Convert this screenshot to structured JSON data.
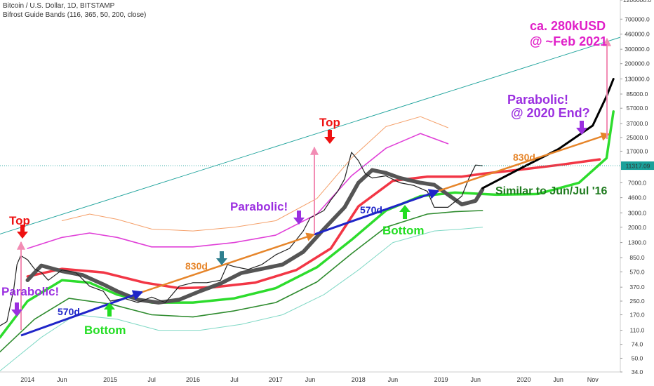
{
  "header": {
    "title": "Bitcoin / U.S. Dollar, 1D, BITSTAMP",
    "indicator": "Bifrost Guide Bands (116, 365, 50, 200, close)"
  },
  "price_label": {
    "value": "11317.09",
    "color": "#1aa19a"
  },
  "chart_data": {
    "type": "line",
    "scale": "log",
    "title": "Bitcoin / U.S. Dollar, 1D, BITSTAMP",
    "x_ticks": [
      "2014",
      "Jun",
      "2015",
      "Jul",
      "2016",
      "Jul",
      "2017",
      "Jun",
      "2018",
      "Jun",
      "2019",
      "Jun",
      "2020",
      "Jun",
      "Nov"
    ],
    "y_ticks": [
      "1200000.0",
      "700000.0",
      "460000.0",
      "300000.0",
      "200000.0",
      "130000.0",
      "85000.0",
      "57000.0",
      "37000.0",
      "25000.0",
      "17000.0",
      "11317.09",
      "7000.0",
      "4600.0",
      "3000.0",
      "2000.0",
      "1300.0",
      "850.0",
      "570.0",
      "370.0",
      "250.0",
      "170.0",
      "110.0",
      "74.0",
      "50.0",
      "34.0"
    ],
    "ylim": [
      34,
      1200000
    ],
    "xlim": [
      "2013-09",
      "2021-03"
    ],
    "series": [
      {
        "name": "BTC price (close)",
        "color": "#222222",
        "x": [
          "2013-09",
          "2013-10",
          "2013-11",
          "2013-11-15",
          "2013-12",
          "2014-01",
          "2014-02",
          "2014-03",
          "2014-04",
          "2014-06",
          "2014-08",
          "2014-10",
          "2014-12",
          "2015-01",
          "2015-03",
          "2015-05",
          "2015-07",
          "2015-09",
          "2015-11",
          "2016-01",
          "2016-03",
          "2016-05",
          "2016-06",
          "2016-07",
          "2016-09",
          "2016-11",
          "2017-01",
          "2017-03",
          "2017-05",
          "2017-06",
          "2017-08",
          "2017-09",
          "2017-10",
          "2017-11",
          "2017-12",
          "2018-01",
          "2018-02",
          "2018-03",
          "2018-05",
          "2018-07",
          "2018-09",
          "2018-11",
          "2018-12",
          "2019-02",
          "2019-04",
          "2019-05",
          "2019-06",
          "2019-07"
        ],
        "y": [
          125,
          140,
          350,
          700,
          900,
          800,
          620,
          560,
          450,
          600,
          560,
          380,
          330,
          250,
          270,
          240,
          280,
          240,
          380,
          420,
          420,
          450,
          700,
          660,
          610,
          700,
          920,
          1100,
          1800,
          2600,
          3200,
          4300,
          5500,
          7800,
          16500,
          13000,
          9000,
          8000,
          8500,
          7000,
          6500,
          5500,
          3500,
          3500,
          4800,
          7800,
          11500,
          11317
        ]
      },
      {
        "name": "Bifrost band 116d (dark gray)",
        "color": "#555555",
        "x": [
          "2014-01",
          "2014-03",
          "2014-06",
          "2014-09",
          "2014-12",
          "2015-02",
          "2015-05",
          "2015-08",
          "2015-11",
          "2016-02",
          "2016-05",
          "2016-08",
          "2016-11",
          "2017-02",
          "2017-05",
          "2017-08",
          "2017-11",
          "2018-01",
          "2018-03",
          "2018-05",
          "2018-07",
          "2018-10",
          "2018-12",
          "2019-02",
          "2019-04",
          "2019-06",
          "2019-07"
        ],
        "y": [
          450,
          680,
          580,
          520,
          400,
          330,
          260,
          240,
          260,
          330,
          410,
          550,
          620,
          700,
          1000,
          1900,
          3500,
          7000,
          10000,
          9200,
          8000,
          7000,
          6600,
          5000,
          3800,
          4200,
          5800
        ]
      },
      {
        "name": "Bifrost band 365d (red)",
        "color": "#f23645",
        "x": [
          "2014-01",
          "2014-06",
          "2014-12",
          "2015-06",
          "2015-11",
          "2016-04",
          "2016-10",
          "2017-04",
          "2017-09",
          "2018-01",
          "2018-06",
          "2018-11",
          "2019-04",
          "2019-07",
          "2019-12",
          "2020-06",
          "2020-12"
        ],
        "y": [
          500,
          620,
          560,
          420,
          360,
          370,
          420,
          600,
          1100,
          3600,
          7400,
          8300,
          8300,
          9000,
          10000,
          11500,
          13500
        ]
      },
      {
        "name": "Projection 2019-07 to 2021-01 (black)",
        "color": "#000000",
        "x": [
          "2019-07",
          "2020-01",
          "2020-06",
          "2020-11",
          "2021-01",
          "2021-02"
        ],
        "y": [
          6000,
          11000,
          18000,
          35000,
          80000,
          130000
        ]
      },
      {
        "name": "Lower band (green)",
        "color": "#2ddc2d",
        "x": [
          "2013-09",
          "2014-01",
          "2014-06",
          "2014-10",
          "2015-02",
          "2015-07",
          "2016-01",
          "2016-07",
          "2017-01",
          "2017-07",
          "2017-12",
          "2018-05",
          "2018-10",
          "2019-03",
          "2019-09",
          "2020-03",
          "2020-09",
          "2021-01",
          "2021-02"
        ],
        "y": [
          90,
          250,
          450,
          420,
          300,
          240,
          240,
          270,
          360,
          650,
          1400,
          3200,
          4800,
          5300,
          5000,
          5100,
          7000,
          14000,
          52000
        ]
      },
      {
        "name": "Upper band (pink)",
        "color": "#e040d8",
        "x": [
          "2014-01",
          "2014-06",
          "2014-10",
          "2015-02",
          "2015-07",
          "2016-01",
          "2016-07",
          "2017-01",
          "2017-07",
          "2017-12",
          "2018-05",
          "2018-10",
          "2019-02"
        ],
        "y": [
          1100,
          1500,
          1700,
          1500,
          1150,
          1150,
          1300,
          1600,
          2900,
          8500,
          18500,
          28000,
          21000
        ]
      },
      {
        "name": "Outer upper band (light orange)",
        "color": "#f5a06a",
        "x": [
          "2014-06",
          "2014-10",
          "2015-02",
          "2015-07",
          "2016-01",
          "2016-07",
          "2017-01",
          "2017-07",
          "2017-12",
          "2018-05",
          "2018-10",
          "2019-02"
        ],
        "y": [
          2400,
          2900,
          2500,
          1900,
          1800,
          2000,
          2400,
          4500,
          14000,
          34000,
          45000,
          33000
        ]
      },
      {
        "name": "Lower band 2 (dark green)",
        "color": "#2e8b2e",
        "x": [
          "2013-09",
          "2014-02",
          "2014-07",
          "2015-01",
          "2015-07",
          "2016-01",
          "2016-07",
          "2017-01",
          "2017-07",
          "2017-12",
          "2018-05",
          "2018-11",
          "2019-03",
          "2019-07"
        ],
        "y": [
          60,
          150,
          270,
          230,
          170,
          160,
          190,
          240,
          430,
          950,
          2000,
          2900,
          3100,
          3200
        ]
      },
      {
        "name": "Outer lower band (light teal)",
        "color": "#7fd8c5",
        "x": [
          "2013-09",
          "2014-03",
          "2014-08",
          "2015-02",
          "2015-08",
          "2016-02",
          "2016-08",
          "2017-02",
          "2017-08",
          "2018-01",
          "2018-06",
          "2018-12",
          "2019-04",
          "2019-07"
        ],
        "y": [
          35,
          90,
          170,
          150,
          110,
          110,
          130,
          170,
          300,
          600,
          1300,
          1800,
          1900,
          2000
        ]
      },
      {
        "name": "Trend channel (teal)",
        "color": "#1aa19a",
        "x": [
          "2013-09",
          "2021-03"
        ],
        "y": [
          1650,
          420000
        ]
      }
    ],
    "annotations": [
      {
        "text": "Top",
        "color": "#ee1111"
      },
      {
        "text": "Parabolic!",
        "color": "#9b2fe0"
      },
      {
        "text": "Bottom",
        "color": "#22dd22"
      },
      {
        "text": "570d",
        "color": "#1f25c8"
      },
      {
        "text": "830d",
        "color": "#e6852a"
      },
      {
        "text": "Top",
        "color": "#ee1111"
      },
      {
        "text": "Parabolic!",
        "color": "#9b2fe0"
      },
      {
        "text": "570d",
        "color": "#1f25c8"
      },
      {
        "text": "Bottom",
        "color": "#22dd22"
      },
      {
        "text": "830d",
        "color": "#e6852a"
      },
      {
        "text": "Parabolic!",
        "color": "#9b2fe0"
      },
      {
        "text": "@ 2020 End?",
        "color": "#9b2fe0"
      },
      {
        "text": "Similar to Jun/Jul '16",
        "color": "#1e7a1e"
      },
      {
        "text": "ca. 280kUSD",
        "color": "#e020c8"
      },
      {
        "text": "@ ~Feb 2021",
        "color": "#e020c8"
      }
    ]
  }
}
